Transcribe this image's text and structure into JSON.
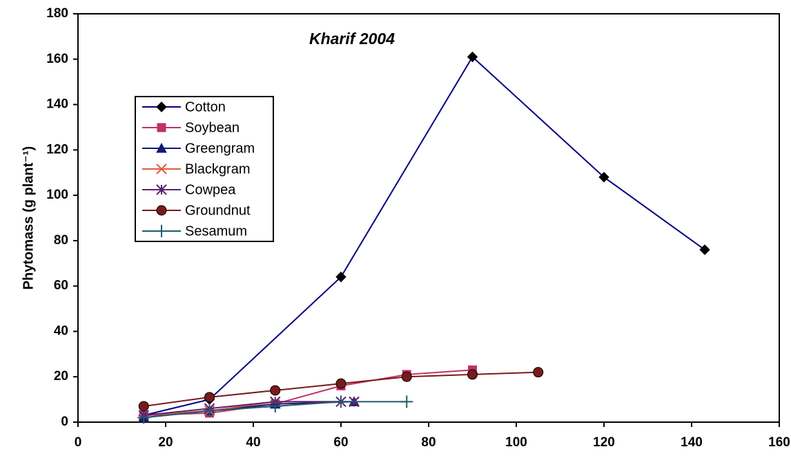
{
  "chart_data": {
    "type": "line",
    "title": "Kharif 2004",
    "y_label": "Phytomass (g plant⁻¹)",
    "xlim": [
      0,
      160
    ],
    "xticks": [
      0,
      20,
      40,
      60,
      80,
      100,
      120,
      140,
      160
    ],
    "ylim": [
      0,
      180
    ],
    "yticks": [
      0,
      20,
      40,
      60,
      80,
      100,
      120,
      140,
      160,
      180
    ],
    "grid": false,
    "legend": "upper left",
    "series": [
      {
        "name": "Cotton",
        "color": "#000080",
        "marker": "diamond",
        "x": [
          15,
          30,
          60,
          90,
          120,
          143
        ],
        "values": [
          3,
          10,
          64,
          161,
          108,
          76
        ]
      },
      {
        "name": "Soybean",
        "color": "#c0306a",
        "marker": "square",
        "x": [
          15,
          30,
          45,
          60,
          75,
          90
        ],
        "values": [
          3,
          4,
          8,
          16,
          21,
          23
        ]
      },
      {
        "name": "Greengram",
        "color": "#101878",
        "marker": "triangle",
        "x": [
          15,
          30,
          45,
          63
        ],
        "values": [
          2,
          5,
          8,
          9
        ]
      },
      {
        "name": "Blackgram",
        "color": "#e05a40",
        "marker": "x",
        "x": [
          15,
          30,
          45,
          63
        ],
        "values": [
          3,
          5,
          9,
          9
        ]
      },
      {
        "name": "Cowpea",
        "color": "#5a2070",
        "marker": "star",
        "x": [
          15,
          30,
          45,
          60,
          63
        ],
        "values": [
          3,
          6,
          9,
          9,
          9
        ]
      },
      {
        "name": "Groundnut",
        "color": "#7a1a1a",
        "marker": "circle",
        "x": [
          15,
          30,
          45,
          60,
          75,
          90,
          105
        ],
        "values": [
          7,
          11,
          14,
          17,
          20,
          21,
          22
        ]
      },
      {
        "name": "Sesamum",
        "color": "#1f5a6a",
        "marker": "plus",
        "x": [
          15,
          30,
          45,
          60,
          75
        ],
        "values": [
          2,
          5,
          7,
          9,
          9
        ]
      }
    ]
  }
}
